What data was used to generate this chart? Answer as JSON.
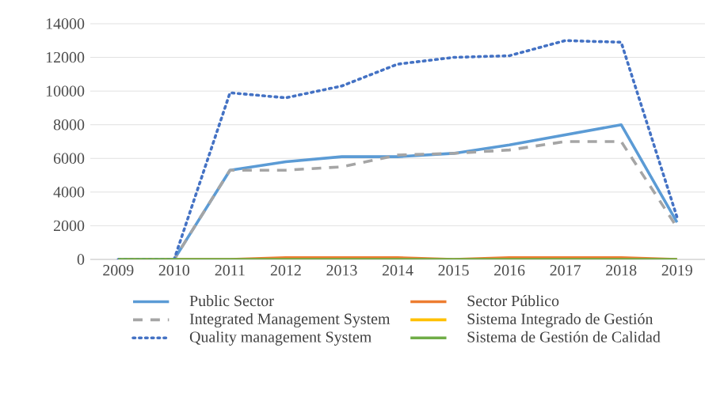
{
  "chart_data": {
    "type": "line",
    "categories": [
      "2009",
      "2010",
      "2011",
      "2012",
      "2013",
      "2014",
      "2015",
      "2016",
      "2017",
      "2018",
      "2019"
    ],
    "ylim": [
      0,
      14000
    ],
    "yticks": [
      0,
      2000,
      4000,
      6000,
      8000,
      10000,
      12000,
      14000
    ],
    "grid": "y",
    "legend": "bottom",
    "series": [
      {
        "name": "Public Sector",
        "color": "#5b9bd5",
        "line_style": "solid",
        "values": [
          0,
          0,
          5300,
          5800,
          6100,
          6100,
          6300,
          6800,
          7400,
          8000,
          2200
        ]
      },
      {
        "name": "Sector Público",
        "color": "#ed7d31",
        "line_style": "solid",
        "values": [
          0,
          0,
          0,
          100,
          100,
          100,
          0,
          100,
          100,
          100,
          0
        ]
      },
      {
        "name": "Integrated Management System",
        "color": "#a5a5a5",
        "line_style": "dashed",
        "values": [
          0,
          0,
          5300,
          5300,
          5500,
          6200,
          6300,
          6500,
          7000,
          7000,
          1900
        ]
      },
      {
        "name": "Sistema Integrado de Gestión",
        "color": "#ffc000",
        "line_style": "solid",
        "values": [
          null,
          null,
          null,
          null,
          null,
          null,
          null,
          null,
          null,
          null,
          null
        ]
      },
      {
        "name": "Quality management System",
        "color": "#4472c4",
        "line_style": "dotted",
        "values": [
          0,
          0,
          9900,
          9600,
          10300,
          11600,
          12000,
          12100,
          13000,
          12900,
          2500
        ]
      },
      {
        "name": "Sistema de Gestión de Calidad",
        "color": "#70ad47",
        "line_style": "solid",
        "values": [
          0,
          0,
          0,
          0,
          0,
          0,
          0,
          0,
          0,
          0,
          0
        ]
      }
    ]
  }
}
